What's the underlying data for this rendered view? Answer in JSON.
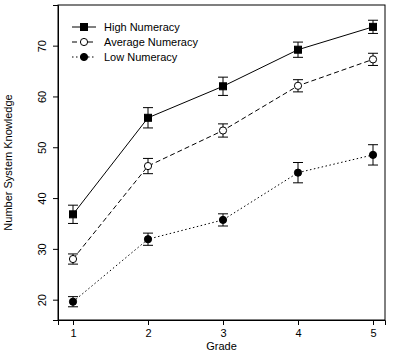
{
  "chart_data": {
    "type": "line",
    "x_label": "Grade",
    "y_label": "Number System Knowledge",
    "x": [
      1,
      2,
      3,
      4,
      5
    ],
    "xlim": [
      0.8,
      5.16
    ],
    "xticks": [
      1,
      2,
      3,
      4,
      5
    ],
    "ylim": [
      16,
      78
    ],
    "yticks": [
      20,
      30,
      40,
      50,
      60,
      70
    ],
    "grid": false,
    "legend": "top-left",
    "series": [
      {
        "name": "High Numeracy",
        "color": "#000000",
        "marker": "square",
        "line_style": "solid",
        "values": [
          36.8,
          55.8,
          62.0,
          69.2,
          73.7
        ],
        "errors": [
          1.8,
          2.0,
          1.8,
          1.5,
          1.3
        ]
      },
      {
        "name": "Average Numeracy",
        "color": "#000000",
        "marker": "circle-open",
        "line_style": "dashed",
        "values": [
          28.0,
          46.3,
          53.3,
          62.1,
          67.3
        ],
        "errors": [
          1.0,
          1.5,
          1.3,
          1.2,
          1.2
        ]
      },
      {
        "name": "Low Numeracy",
        "color": "#000000",
        "marker": "circle",
        "line_style": "dotted",
        "values": [
          19.6,
          31.9,
          35.7,
          45.0,
          48.5
        ],
        "errors": [
          1.0,
          1.2,
          1.2,
          2.0,
          2.0
        ]
      }
    ]
  }
}
